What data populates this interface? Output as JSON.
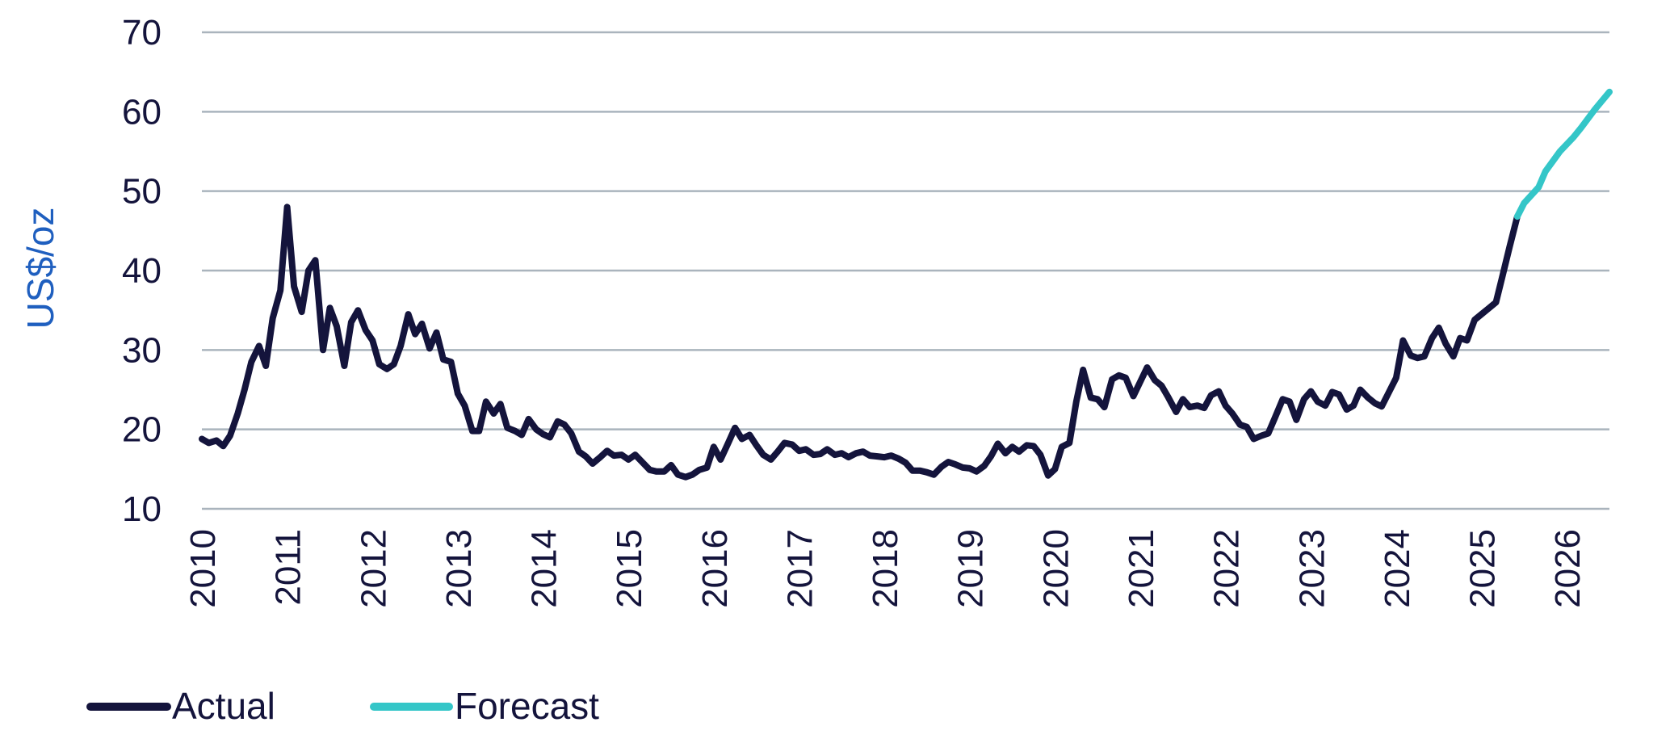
{
  "chart_data": {
    "type": "line",
    "title": "",
    "xlabel": "",
    "ylabel": "US$/oz",
    "ylim": [
      10,
      70
    ],
    "xlim": [
      2010,
      2026.5
    ],
    "yticks": [
      "10",
      "20",
      "30",
      "40",
      "50",
      "60",
      "70"
    ],
    "xticks": [
      "2010",
      "2011",
      "2012",
      "2013",
      "2014",
      "2015",
      "2016",
      "2017",
      "2018",
      "2019",
      "2020",
      "2021",
      "2022",
      "2023",
      "2024",
      "2025",
      "2026"
    ],
    "grid": true,
    "legend_position": "bottom-left",
    "series": [
      {
        "name": "Actual",
        "color": "#14143c",
        "points": [
          [
            2010.0,
            18.8
          ],
          [
            2010.08,
            18.3
          ],
          [
            2010.17,
            18.6
          ],
          [
            2010.25,
            17.9
          ],
          [
            2010.33,
            19.2
          ],
          [
            2010.42,
            22.0
          ],
          [
            2010.5,
            25.0
          ],
          [
            2010.58,
            28.5
          ],
          [
            2010.67,
            30.5
          ],
          [
            2010.75,
            28.0
          ],
          [
            2010.83,
            34.0
          ],
          [
            2010.92,
            37.5
          ],
          [
            2011.0,
            48.0
          ],
          [
            2011.08,
            38.0
          ],
          [
            2011.17,
            34.8
          ],
          [
            2011.25,
            40.0
          ],
          [
            2011.33,
            41.3
          ],
          [
            2011.42,
            30.0
          ],
          [
            2011.5,
            35.3
          ],
          [
            2011.58,
            33.0
          ],
          [
            2011.67,
            28.0
          ],
          [
            2011.75,
            33.5
          ],
          [
            2011.83,
            35.0
          ],
          [
            2011.92,
            32.5
          ],
          [
            2012.0,
            31.2
          ],
          [
            2012.08,
            28.2
          ],
          [
            2012.17,
            27.6
          ],
          [
            2012.25,
            28.2
          ],
          [
            2012.33,
            30.5
          ],
          [
            2012.42,
            34.5
          ],
          [
            2012.5,
            32.0
          ],
          [
            2012.58,
            33.3
          ],
          [
            2012.67,
            30.2
          ],
          [
            2012.75,
            32.2
          ],
          [
            2012.83,
            28.8
          ],
          [
            2012.92,
            28.5
          ],
          [
            2013.0,
            24.5
          ],
          [
            2013.08,
            23.0
          ],
          [
            2013.17,
            19.8
          ],
          [
            2013.25,
            19.8
          ],
          [
            2013.33,
            23.5
          ],
          [
            2013.42,
            22.0
          ],
          [
            2013.5,
            23.2
          ],
          [
            2013.58,
            20.2
          ],
          [
            2013.67,
            19.8
          ],
          [
            2013.75,
            19.3
          ],
          [
            2013.83,
            21.3
          ],
          [
            2013.92,
            20.0
          ],
          [
            2014.0,
            19.4
          ],
          [
            2014.08,
            19.0
          ],
          [
            2014.17,
            21.0
          ],
          [
            2014.25,
            20.6
          ],
          [
            2014.33,
            19.5
          ],
          [
            2014.42,
            17.2
          ],
          [
            2014.5,
            16.6
          ],
          [
            2014.58,
            15.7
          ],
          [
            2014.67,
            16.5
          ],
          [
            2014.75,
            17.3
          ],
          [
            2014.83,
            16.7
          ],
          [
            2014.92,
            16.8
          ],
          [
            2015.0,
            16.2
          ],
          [
            2015.08,
            16.8
          ],
          [
            2015.17,
            15.8
          ],
          [
            2015.25,
            14.9
          ],
          [
            2015.33,
            14.7
          ],
          [
            2015.42,
            14.7
          ],
          [
            2015.5,
            15.5
          ],
          [
            2015.58,
            14.3
          ],
          [
            2015.67,
            14.0
          ],
          [
            2015.75,
            14.3
          ],
          [
            2015.83,
            14.9
          ],
          [
            2015.92,
            15.2
          ],
          [
            2016.0,
            17.8
          ],
          [
            2016.08,
            16.2
          ],
          [
            2016.17,
            18.3
          ],
          [
            2016.25,
            20.2
          ],
          [
            2016.33,
            18.8
          ],
          [
            2016.42,
            19.3
          ],
          [
            2016.5,
            18.0
          ],
          [
            2016.58,
            16.8
          ],
          [
            2016.67,
            16.2
          ],
          [
            2016.75,
            17.2
          ],
          [
            2016.83,
            18.3
          ],
          [
            2016.92,
            18.1
          ],
          [
            2017.0,
            17.3
          ],
          [
            2017.08,
            17.5
          ],
          [
            2017.17,
            16.8
          ],
          [
            2017.25,
            16.9
          ],
          [
            2017.33,
            17.5
          ],
          [
            2017.42,
            16.8
          ],
          [
            2017.5,
            17.0
          ],
          [
            2017.58,
            16.5
          ],
          [
            2017.67,
            17.0
          ],
          [
            2017.75,
            17.2
          ],
          [
            2017.83,
            16.7
          ],
          [
            2017.92,
            16.6
          ],
          [
            2018.0,
            16.5
          ],
          [
            2018.08,
            16.7
          ],
          [
            2018.17,
            16.3
          ],
          [
            2018.25,
            15.8
          ],
          [
            2018.33,
            14.8
          ],
          [
            2018.42,
            14.8
          ],
          [
            2018.5,
            14.6
          ],
          [
            2018.58,
            14.3
          ],
          [
            2018.67,
            15.3
          ],
          [
            2018.75,
            15.9
          ],
          [
            2018.83,
            15.6
          ],
          [
            2018.92,
            15.2
          ],
          [
            2019.0,
            15.1
          ],
          [
            2019.08,
            14.7
          ],
          [
            2019.17,
            15.4
          ],
          [
            2019.25,
            16.6
          ],
          [
            2019.33,
            18.2
          ],
          [
            2019.42,
            17.0
          ],
          [
            2019.5,
            17.8
          ],
          [
            2019.58,
            17.2
          ],
          [
            2019.67,
            18.0
          ],
          [
            2019.75,
            17.9
          ],
          [
            2019.83,
            16.8
          ],
          [
            2019.92,
            14.2
          ],
          [
            2020.0,
            15.0
          ],
          [
            2020.08,
            17.8
          ],
          [
            2020.17,
            18.3
          ],
          [
            2020.25,
            23.5
          ],
          [
            2020.33,
            27.5
          ],
          [
            2020.42,
            24.0
          ],
          [
            2020.5,
            23.8
          ],
          [
            2020.58,
            22.8
          ],
          [
            2020.67,
            26.3
          ],
          [
            2020.75,
            26.8
          ],
          [
            2020.83,
            26.5
          ],
          [
            2020.92,
            24.2
          ],
          [
            2021.0,
            26.0
          ],
          [
            2021.08,
            27.8
          ],
          [
            2021.17,
            26.2
          ],
          [
            2021.25,
            25.5
          ],
          [
            2021.33,
            24.0
          ],
          [
            2021.42,
            22.2
          ],
          [
            2021.5,
            23.8
          ],
          [
            2021.58,
            22.8
          ],
          [
            2021.67,
            23.0
          ],
          [
            2021.75,
            22.7
          ],
          [
            2021.83,
            24.3
          ],
          [
            2021.92,
            24.8
          ],
          [
            2022.0,
            23.0
          ],
          [
            2022.08,
            22.0
          ],
          [
            2022.17,
            20.6
          ],
          [
            2022.25,
            20.3
          ],
          [
            2022.33,
            18.8
          ],
          [
            2022.42,
            19.2
          ],
          [
            2022.5,
            19.5
          ],
          [
            2022.58,
            21.5
          ],
          [
            2022.67,
            23.8
          ],
          [
            2022.75,
            23.5
          ],
          [
            2022.83,
            21.2
          ],
          [
            2022.92,
            23.8
          ],
          [
            2023.0,
            24.8
          ],
          [
            2023.08,
            23.5
          ],
          [
            2023.17,
            23.0
          ],
          [
            2023.25,
            24.7
          ],
          [
            2023.33,
            24.4
          ],
          [
            2023.42,
            22.5
          ],
          [
            2023.5,
            23.0
          ],
          [
            2023.58,
            25.0
          ],
          [
            2023.67,
            24.0
          ],
          [
            2023.75,
            23.3
          ],
          [
            2023.83,
            22.9
          ],
          [
            2023.92,
            24.8
          ],
          [
            2024.0,
            26.5
          ],
          [
            2024.08,
            31.2
          ],
          [
            2024.17,
            29.3
          ],
          [
            2024.25,
            29.0
          ],
          [
            2024.33,
            29.2
          ],
          [
            2024.42,
            31.5
          ],
          [
            2024.5,
            32.8
          ],
          [
            2024.58,
            30.8
          ],
          [
            2024.67,
            29.2
          ],
          [
            2024.75,
            31.5
          ],
          [
            2024.83,
            31.2
          ],
          [
            2024.92,
            33.8
          ],
          [
            2025.0,
            34.5
          ],
          [
            2025.08,
            35.2
          ],
          [
            2025.17,
            36.0
          ],
          [
            2025.25,
            39.5
          ],
          [
            2025.33,
            43.0
          ],
          [
            2025.42,
            46.8
          ]
        ]
      },
      {
        "name": "Forecast",
        "color": "#34c6c8",
        "points": [
          [
            2025.42,
            46.8
          ],
          [
            2025.5,
            48.5
          ],
          [
            2025.67,
            50.5
          ],
          [
            2025.75,
            52.5
          ],
          [
            2025.92,
            55.0
          ],
          [
            2026.08,
            56.8
          ],
          [
            2026.17,
            58.0
          ],
          [
            2026.33,
            60.3
          ],
          [
            2026.5,
            62.5
          ]
        ]
      }
    ]
  }
}
